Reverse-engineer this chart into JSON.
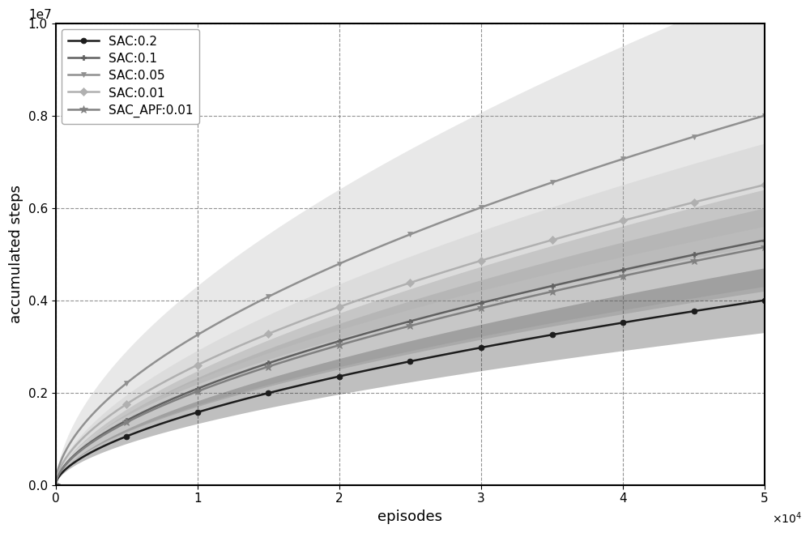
{
  "title": "",
  "xlabel": "episodes",
  "ylabel": "accumulated steps",
  "xlim": [
    0,
    50000
  ],
  "ylim": [
    0,
    10000000.0
  ],
  "xticks": [
    0,
    10000,
    20000,
    30000,
    40000,
    50000
  ],
  "yticks": [
    0.0,
    0.2,
    0.4,
    0.6,
    0.8,
    1.0
  ],
  "series": [
    {
      "label": "SAC:0.2",
      "color": "#1c1c1c",
      "marker": "o",
      "markersize": 5,
      "final_mean": 4000000,
      "std_scale": 550000.0,
      "shade_alpha": 0.28
    },
    {
      "label": "SAC:0.1",
      "color": "#606060",
      "marker": "P",
      "markersize": 5,
      "final_mean": 5300000,
      "std_scale": 900000.0,
      "shade_alpha": 0.22
    },
    {
      "label": "SAC:0.05",
      "color": "#909090",
      "marker": "v",
      "markersize": 5,
      "final_mean": 8000000,
      "std_scale": 2200000.0,
      "shade_alpha": 0.2
    },
    {
      "label": "SAC:0.01",
      "color": "#b0b0b0",
      "marker": "D",
      "markersize": 5,
      "final_mean": 6500000,
      "std_scale": 750000.0,
      "shade_alpha": 0.2
    },
    {
      "label": "SAC_APF:0.01",
      "color": "#808080",
      "marker": "*",
      "markersize": 7,
      "final_mean": 5150000,
      "std_scale": 650000.0,
      "shade_alpha": 0.22
    }
  ],
  "n_points": 501,
  "marker_every": 50,
  "linewidth": 1.8,
  "figsize": [
    10.0,
    6.58
  ],
  "dpi": 100
}
